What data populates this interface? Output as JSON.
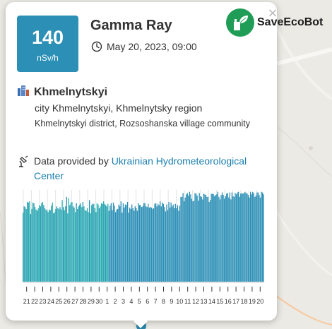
{
  "logo": {
    "save": "Save",
    "eco": "Eco",
    "bot": "Bot"
  },
  "popup": {
    "close": "×",
    "value": "140",
    "unit": "nSv/h",
    "title": "Gamma Ray",
    "datetime": "May 20, 2023, 09:00"
  },
  "location": {
    "city": "Khmelnytskyi",
    "line1": "city Khmelnytskyi, Khmelnytsky region",
    "line2": "Khmelnytskyi district, Rozsoshanska village community"
  },
  "provider": {
    "prefix": "Data provided by",
    "link": "Ukrainian Hydrometeorological Center"
  },
  "colors": {
    "accent": "#2b8fb6",
    "bar_teal": "#27b0b0",
    "bar_blue": "#2b8fb6",
    "logo_green": "#1f9d57"
  },
  "chart_data": {
    "type": "bar",
    "tick_labels": [
      "21",
      "22",
      "23",
      "24",
      "25",
      "26",
      "27",
      "28",
      "29",
      "30",
      "1",
      "2",
      "3",
      "4",
      "5",
      "6",
      "7",
      "8",
      "9",
      "10",
      "11",
      "12",
      "13",
      "14",
      "15",
      "16",
      "17",
      "18",
      "19",
      "20"
    ],
    "ylim": [
      0,
      145
    ],
    "values": [
      109,
      119,
      118,
      115,
      126,
      125,
      127,
      107,
      115,
      125,
      124,
      118,
      114,
      112,
      116,
      121,
      119,
      124,
      126,
      121,
      116,
      114,
      113,
      110,
      114,
      113,
      120,
      125,
      108,
      110,
      115,
      119,
      116,
      115,
      118,
      114,
      129,
      118,
      113,
      119,
      134,
      108,
      132,
      121,
      125,
      126,
      119,
      117,
      110,
      124,
      115,
      119,
      121,
      124,
      118,
      126,
      119,
      113,
      112,
      116,
      110,
      129,
      108,
      121,
      123,
      123,
      116,
      110,
      124,
      122,
      116,
      119,
      124,
      123,
      127,
      123,
      121,
      119,
      123,
      112,
      120,
      124,
      113,
      125,
      120,
      110,
      114,
      115,
      122,
      119,
      127,
      109,
      124,
      117,
      122,
      121,
      126,
      109,
      117,
      115,
      122,
      116,
      112,
      119,
      116,
      112,
      124,
      121,
      121,
      118,
      119,
      124,
      124,
      119,
      118,
      123,
      117,
      118,
      117,
      115,
      116,
      123,
      124,
      119,
      123,
      121,
      127,
      119,
      125,
      123,
      118,
      111,
      122,
      113,
      126,
      117,
      125,
      119,
      122,
      116,
      123,
      116,
      121,
      112,
      120,
      134,
      134,
      140,
      127,
      133,
      138,
      140,
      136,
      142,
      138,
      131,
      127,
      128,
      140,
      139,
      136,
      128,
      140,
      135,
      134,
      130,
      139,
      138,
      137,
      134,
      134,
      126,
      129,
      139,
      139,
      138,
      135,
      137,
      138,
      142,
      134,
      130,
      137,
      141,
      137,
      131,
      135,
      139,
      140,
      133,
      141,
      130,
      141,
      135,
      134,
      140,
      138,
      141,
      142,
      134,
      139,
      140,
      139,
      140,
      142,
      140,
      139,
      137,
      133,
      142,
      138,
      142,
      140,
      134,
      136,
      141,
      141,
      137,
      133,
      142,
      141,
      138
    ]
  }
}
